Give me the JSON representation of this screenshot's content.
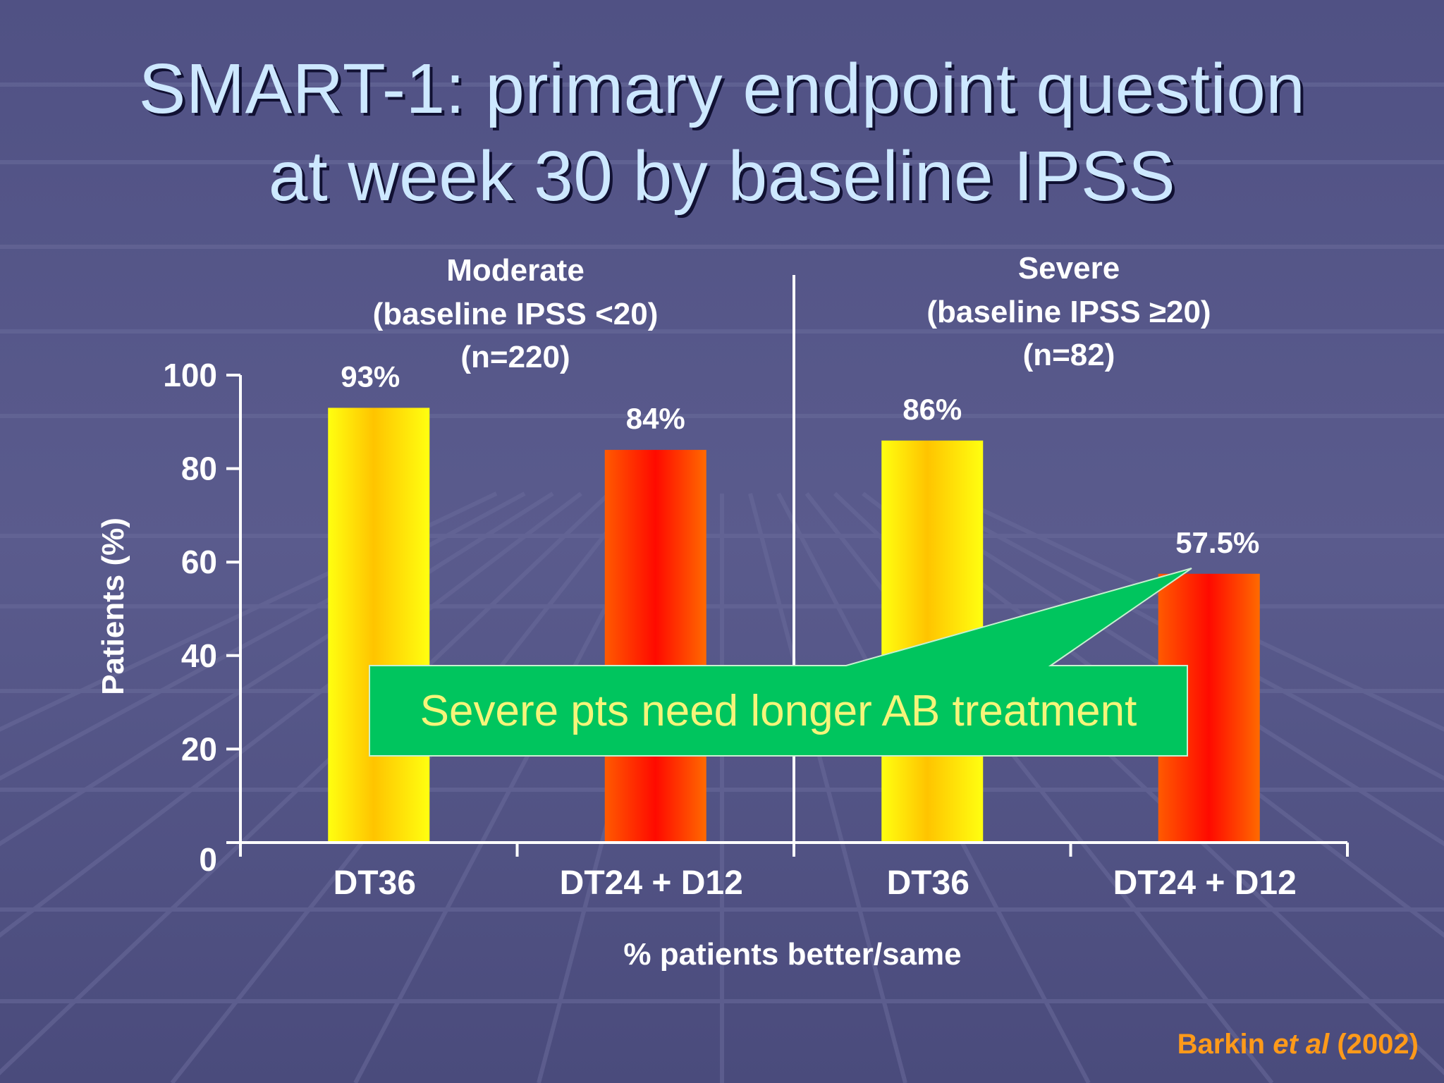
{
  "slide": {
    "title_line1": "SMART-1: primary endpoint question",
    "title_line2": "at week 30 by baseline IPSS"
  },
  "chart_data": {
    "type": "bar",
    "ylabel": "Patients (%)",
    "xlabel": "% patients better/same",
    "ylim": [
      0,
      100
    ],
    "yticks": [
      "0",
      "20",
      "40",
      "60",
      "80",
      "100"
    ],
    "groups": [
      {
        "line1": "Moderate",
        "line2": "(baseline IPSS <20)",
        "line3": "(n=220)",
        "bars": [
          {
            "category": "DT36",
            "value": 93,
            "label": "93%"
          },
          {
            "category": "DT24 + D12",
            "value": 84,
            "label": "84%"
          }
        ]
      },
      {
        "line1": "Severe",
        "line2": "(baseline IPSS ≥20)",
        "line3": "(n=82)",
        "bars": [
          {
            "category": "DT36",
            "value": 86,
            "label": "86%"
          },
          {
            "category": "DT24 + D12",
            "value": 57.5,
            "label": "57.5%"
          }
        ]
      }
    ],
    "callout": "Severe pts need longer AB treatment"
  },
  "citation": {
    "author": "Barkin ",
    "etal": "et al",
    "year": " (2002)"
  },
  "colors": {
    "background": "#545587",
    "title": "#cde8ff",
    "dt36_bar": "#ffd000",
    "combo_bar": "#ff3300",
    "callout_fill": "#00c060",
    "callout_text": "#f5f57a",
    "citation": "#ff9a1a"
  }
}
